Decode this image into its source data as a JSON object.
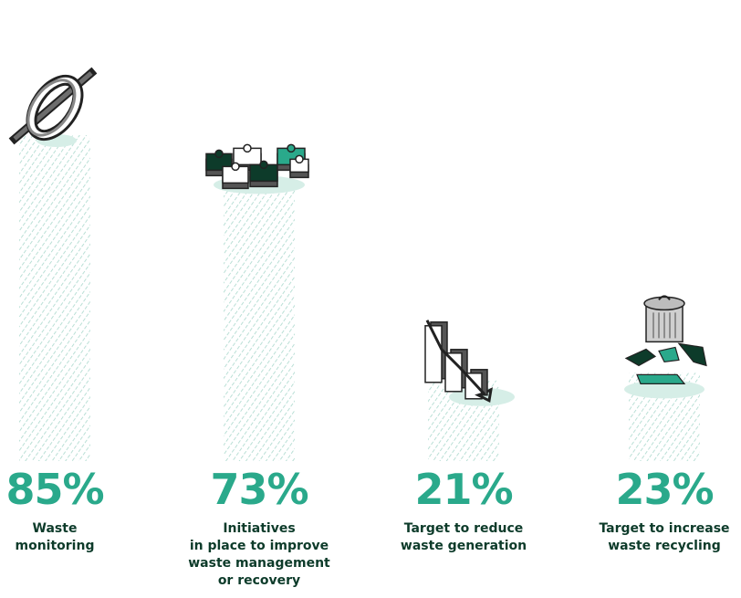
{
  "chart_data": {
    "type": "bar",
    "categories": [
      [
        "Waste",
        "monitoring"
      ],
      [
        "Initiatives",
        "in place to improve",
        "waste management",
        "or recovery"
      ],
      [
        "Target to reduce",
        "waste generation"
      ],
      [
        "Target to increase",
        "waste recycling"
      ]
    ],
    "values": [
      85,
      73,
      21,
      23
    ],
    "value_labels": [
      "85%",
      "73%",
      "21%",
      "23%"
    ],
    "unit": "%",
    "ylim": [
      0,
      100
    ],
    "icons": [
      "compass-ring-icon",
      "puzzle-pieces-icon",
      "declining-arrow-icon",
      "recycle-bin-icon"
    ],
    "colors": {
      "accent": "#2aa98b",
      "dark": "#0d3b2a",
      "bar_hatch": "#a9d8cc"
    }
  }
}
